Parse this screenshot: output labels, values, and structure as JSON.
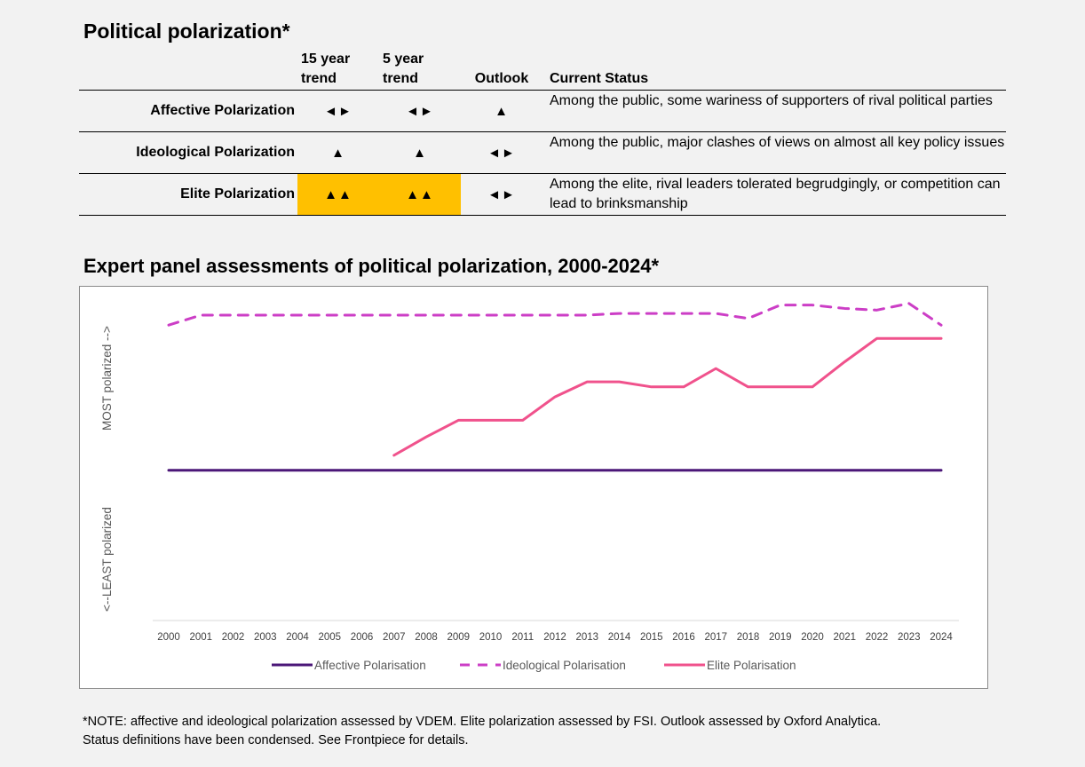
{
  "title": "Political polarization*",
  "table": {
    "headers": {
      "trend15_line1": "15 year",
      "trend15_line2": "trend",
      "trend5_line1": "5 year",
      "trend5_line2": "trend",
      "outlook": "Outlook",
      "status": "Current Status"
    },
    "rows": [
      {
        "name": "Affective Polarization",
        "trend15": "◄►",
        "trend5": "◄►",
        "outlook": "▲",
        "status": "Among the public, some wariness of supporters of rival political parties",
        "highlight_color": ""
      },
      {
        "name": "Ideological Polarization",
        "trend15": "▲",
        "trend5": "▲",
        "outlook": "◄►",
        "status": "Among the public, major clashes of views on almost all key policy issues",
        "highlight_color": ""
      },
      {
        "name": "Elite Polarization",
        "trend15": "▲▲",
        "trend5": "▲▲",
        "outlook": "◄►",
        "status": "Among the elite, rival leaders tolerated begrudgingly, or competition can lead to brinksmanship",
        "highlight_color": "#ffc000"
      }
    ]
  },
  "chart_title": "Expert panel assessments of political polarization, 2000-2024*",
  "chart_data": {
    "type": "line",
    "x": [
      "2000",
      "2001",
      "2002",
      "2003",
      "2004",
      "2005",
      "2006",
      "2007",
      "2008",
      "2009",
      "2010",
      "2011",
      "2012",
      "2013",
      "2014",
      "2015",
      "2016",
      "2017",
      "2018",
      "2019",
      "2020",
      "2021",
      "2022",
      "2023",
      "2024"
    ],
    "ylabel_top": "MOST polarized -->",
    "ylabel_bottom": "<--LEAST polarized",
    "ylim": [
      0,
      100
    ],
    "grid": false,
    "legend_position": "bottom",
    "series": [
      {
        "name": "Affective Polarisation",
        "color": "#4b1778",
        "dash": "solid",
        "values": [
          45,
          45,
          45,
          45,
          45,
          45,
          45,
          45,
          45,
          45,
          45,
          45,
          45,
          45,
          45,
          45,
          45,
          45,
          45,
          45,
          45,
          45,
          45,
          45,
          45
        ]
      },
      {
        "name": "Ideological Polarisation",
        "color": "#cc3ec6",
        "dash": "dashed",
        "values": [
          88.5,
          91.5,
          91.5,
          91.5,
          91.5,
          91.5,
          91.5,
          91.5,
          91.5,
          91.5,
          91.5,
          91.5,
          91.5,
          91.5,
          92,
          92,
          92,
          92,
          90.5,
          94.5,
          94.5,
          93.5,
          93,
          95,
          88.5
        ]
      },
      {
        "name": "Elite Polarisation",
        "color": "#f0528c",
        "dash": "solid",
        "values": [
          null,
          null,
          null,
          null,
          null,
          null,
          null,
          49.5,
          55,
          60,
          60,
          60,
          67,
          71.5,
          71.5,
          70,
          70,
          75.5,
          70,
          70,
          70,
          77.5,
          84.5,
          84.5,
          84.5
        ]
      }
    ]
  },
  "note_line1": "*NOTE: affective and ideological polarization assessed by VDEM. Elite polarization assessed by FSI. Outlook assessed by Oxford Analytica.",
  "note_line2": "Status definitions have been condensed. See Frontpiece for details."
}
